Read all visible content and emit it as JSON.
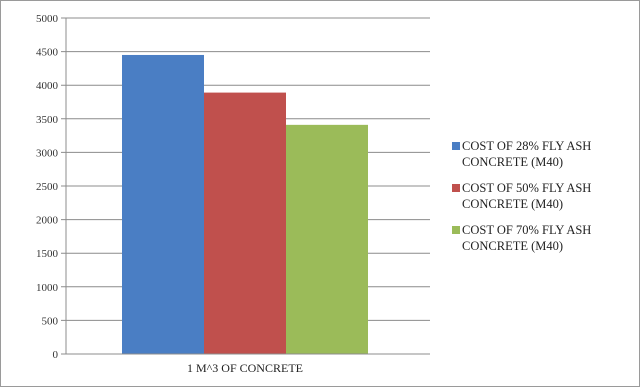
{
  "chart_data": {
    "type": "bar",
    "categories": [
      "1 M^3 OF CONCRETE"
    ],
    "series": [
      {
        "name": "COST OF 28% FLY ASH CONCRETE (M40)",
        "values": [
          4450
        ],
        "color": "#4a7ec4"
      },
      {
        "name": "COST OF 50% FLY ASH CONCRETE (M40)",
        "values": [
          3890
        ],
        "color": "#c0504d"
      },
      {
        "name": "COST OF 70% FLY ASH CONCRETE (M40)",
        "values": [
          3410
        ],
        "color": "#9bbb59"
      }
    ],
    "yticks": [
      0,
      500,
      1000,
      1500,
      2000,
      2500,
      3000,
      3500,
      4000,
      4500,
      5000
    ],
    "ylim": [
      0,
      5000
    ],
    "grid": true,
    "legend": "right"
  }
}
